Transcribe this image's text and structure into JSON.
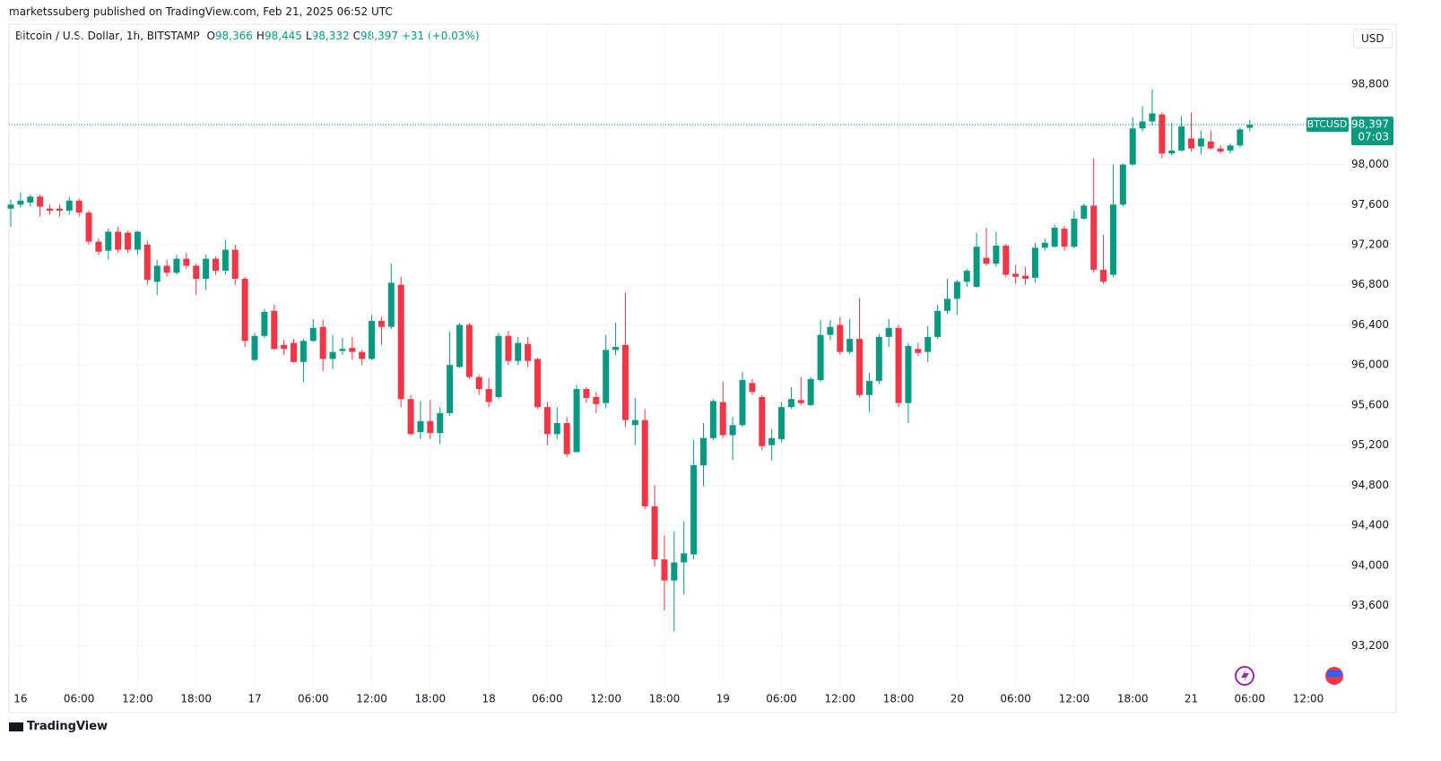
{
  "header": {
    "published": "marketssuberg published on TradingView.com, Feb 21, 2025 06:52 UTC",
    "symbol": "Bitcoin / U.S. Dollar, 1h, BITSTAMP",
    "ohlc": [
      {
        "key": "O",
        "text": "98,366"
      },
      {
        "key": "H",
        "text": "98,445"
      },
      {
        "key": "L",
        "text": "98,332"
      },
      {
        "key": "C",
        "text": "98,397"
      }
    ],
    "change": "+31 (+0.03%)",
    "currency": "USD"
  },
  "footer": {
    "brand": "TradingView"
  },
  "chart_data": {
    "type": "candlestick",
    "up_color": "#089981",
    "down_color": "#f23645",
    "grid": true,
    "categories": [
      null,
      "16",
      null,
      null,
      null,
      null,
      null,
      "06:00",
      null,
      null,
      null,
      null,
      null,
      "12:00",
      null,
      null,
      null,
      null,
      null,
      "18:00",
      null,
      null,
      null,
      null,
      null,
      "17",
      null,
      null,
      null,
      null,
      null,
      "06:00",
      null,
      null,
      null,
      null,
      null,
      "12:00",
      null,
      null,
      null,
      null,
      null,
      "18:00",
      null,
      null,
      null,
      null,
      null,
      "18",
      null,
      null,
      null,
      null,
      null,
      "06:00",
      null,
      null,
      null,
      null,
      null,
      "12:00",
      null,
      null,
      null,
      null,
      null,
      "18:00",
      null,
      null,
      null,
      null,
      null,
      "19",
      null,
      null,
      null,
      null,
      null,
      "06:00",
      null,
      null,
      null,
      null,
      null,
      "12:00",
      null,
      null,
      null,
      null,
      null,
      "18:00",
      null,
      null,
      null,
      null,
      null,
      "20",
      null,
      null,
      null,
      null,
      null,
      "06:00",
      null,
      null,
      null,
      null,
      null,
      "12:00",
      null,
      null,
      null,
      null,
      null,
      "18:00",
      null,
      null,
      null,
      null,
      null,
      "21",
      null,
      null,
      null,
      null,
      null,
      "06:00",
      null,
      null,
      null,
      null,
      null,
      "12:00"
    ],
    "open": [
      97560,
      97600,
      97620,
      97680,
      97560,
      97560,
      97540,
      97640,
      97520,
      97230,
      97140,
      97330,
      97320,
      97150,
      97200,
      96830,
      96990,
      96920,
      97060,
      96990,
      96860,
      97060,
      96940,
      97150,
      96860,
      96050,
      96290,
      96540,
      96200,
      96220,
      96030,
      96240,
      96380,
      96060,
      96140,
      96170,
      96130,
      96060,
      96440,
      96380,
      96800,
      95660,
      95330,
      95440,
      95320,
      95520,
      95980,
      96400,
      95880,
      95760,
      95680,
      96290,
      96040,
      96210,
      96060,
      95580,
      95310,
      95420,
      95130,
      95760,
      95680,
      95620,
      96150,
      96200,
      95400,
      95450,
      94590,
      94060,
      93850,
      94030,
      94110,
      95000,
      95270,
      95630,
      95300,
      95400,
      95820,
      95680,
      95200,
      95260,
      95580,
      95650,
      95600,
      95850,
      96300,
      96400,
      96130,
      96260,
      95700,
      95840,
      96280,
      96370,
      95620,
      96160,
      96130,
      96280,
      96540,
      96660,
      96830,
      96780,
      97070,
      97010,
      97190,
      96910,
      96890,
      96870,
      97170,
      97180,
      97360,
      97180,
      97460,
      97590,
      96950,
      96900,
      97600,
      98000,
      98360,
      98430,
      98500,
      98110,
      98140,
      98260,
      98180,
      98230,
      98160,
      98140,
      98190,
      98366,
      null,
      null,
      null,
      null,
      null,
      null
    ],
    "high": [
      97650,
      97720,
      97700,
      97700,
      97600,
      97600,
      97680,
      97660,
      97540,
      97260,
      97360,
      97380,
      97340,
      97340,
      97240,
      97050,
      97050,
      97100,
      97120,
      97010,
      97100,
      97080,
      97250,
      97200,
      96880,
      96320,
      96560,
      96600,
      96250,
      96260,
      96260,
      96460,
      96450,
      96300,
      96270,
      96280,
      96150,
      96500,
      96480,
      97010,
      96880,
      95700,
      95640,
      95650,
      95580,
      96330,
      96420,
      96420,
      95900,
      95870,
      96320,
      96340,
      96280,
      96280,
      96070,
      95630,
      95580,
      95480,
      95800,
      95780,
      95730,
      96300,
      96420,
      96720,
      95670,
      95560,
      94800,
      94300,
      94340,
      94440,
      95250,
      95420,
      95660,
      95830,
      95480,
      95930,
      95860,
      95700,
      95360,
      95630,
      95780,
      95880,
      95880,
      96450,
      96450,
      96480,
      96460,
      96670,
      95920,
      96310,
      96460,
      96400,
      96220,
      96220,
      96390,
      96600,
      96860,
      96850,
      96960,
      97320,
      97370,
      97330,
      97210,
      97000,
      96980,
      97220,
      97260,
      97400,
      97390,
      97540,
      97610,
      98060,
      97300,
      98000,
      98010,
      98470,
      98580,
      98750,
      98520,
      98420,
      98480,
      98520,
      98340,
      98340,
      98190,
      98210,
      98370,
      98445,
      null,
      null,
      null,
      null,
      null,
      null
    ],
    "low": [
      97380,
      97570,
      97580,
      97480,
      97500,
      97480,
      97500,
      97480,
      97200,
      97100,
      97050,
      97120,
      97120,
      97100,
      96800,
      96700,
      96880,
      96900,
      96960,
      96700,
      96750,
      96900,
      96900,
      96800,
      96180,
      96040,
      96270,
      96150,
      96100,
      96020,
      95830,
      96230,
      95940,
      95960,
      96100,
      96050,
      96000,
      96050,
      96200,
      96360,
      95580,
      95300,
      95260,
      95260,
      95210,
      95490,
      95970,
      95860,
      95700,
      95580,
      95660,
      96000,
      96000,
      95980,
      95560,
      95200,
      95260,
      95080,
      95130,
      95620,
      95520,
      95570,
      96100,
      95380,
      95200,
      94560,
      93990,
      93550,
      93340,
      93710,
      94060,
      94790,
      95250,
      95270,
      95050,
      95380,
      95700,
      95150,
      95050,
      95230,
      95560,
      95600,
      95590,
      95830,
      96250,
      96100,
      96110,
      95680,
      95530,
      95810,
      96180,
      95580,
      95420,
      96090,
      96030,
      96260,
      96510,
      96500,
      96780,
      96770,
      96990,
      96980,
      96880,
      96810,
      96800,
      96820,
      97140,
      97170,
      97140,
      97160,
      97450,
      96920,
      96810,
      96880,
      97580,
      97990,
      98330,
      98390,
      98060,
      98090,
      98130,
      98130,
      98100,
      98150,
      98110,
      98110,
      98170,
      98332,
      null,
      null,
      null,
      null,
      null,
      null
    ],
    "close": [
      97600,
      97640,
      97680,
      97580,
      97540,
      97540,
      97640,
      97520,
      97230,
      97130,
      97330,
      97150,
      97150,
      97330,
      96850,
      96990,
      96920,
      97060,
      96990,
      96860,
      97060,
      96940,
      97150,
      96860,
      96240,
      96290,
      96530,
      96160,
      96160,
      96030,
      96240,
      96370,
      96060,
      96130,
      96160,
      96130,
      96060,
      96440,
      96380,
      96820,
      95660,
      95310,
      95440,
      95320,
      95520,
      96000,
      96400,
      95880,
      95760,
      95630,
      96290,
      96040,
      96220,
      96040,
      95580,
      95310,
      95420,
      95110,
      95760,
      95670,
      95610,
      96150,
      96180,
      95450,
      95450,
      94590,
      94060,
      93850,
      94030,
      94120,
      95000,
      95270,
      95640,
      95300,
      95400,
      95850,
      95730,
      95190,
      95270,
      95580,
      95660,
      95620,
      95860,
      96300,
      96380,
      96130,
      96260,
      95700,
      95840,
      96280,
      96370,
      95620,
      96190,
      96120,
      96280,
      96540,
      96660,
      96830,
      96940,
      97180,
      97010,
      97190,
      96900,
      96880,
      96860,
      97170,
      97220,
      97370,
      97180,
      97460,
      97590,
      96950,
      96830,
      97600,
      98000,
      98360,
      98430,
      98510,
      98110,
      98140,
      98380,
      98160,
      98260,
      98160,
      98130,
      98190,
      98350,
      98397,
      null,
      null,
      null,
      null,
      null,
      null
    ],
    "ylim": [
      92800,
      99400
    ],
    "yticks": [
      {
        "value": 93200,
        "label": "93,200"
      },
      {
        "value": 93600,
        "label": "93,600"
      },
      {
        "value": 94000,
        "label": "94,000"
      },
      {
        "value": 94400,
        "label": "94,400"
      },
      {
        "value": 94800,
        "label": "94,800"
      },
      {
        "value": 95200,
        "label": "95,200"
      },
      {
        "value": 95600,
        "label": "95,600"
      },
      {
        "value": 96000,
        "label": "96,000"
      },
      {
        "value": 96400,
        "label": "96,400"
      },
      {
        "value": 96800,
        "label": "96,800"
      },
      {
        "value": 97200,
        "label": "97,200"
      },
      {
        "value": 97600,
        "label": "97,600"
      },
      {
        "value": 98000,
        "label": "98,000"
      },
      {
        "value": 98400,
        "label": "98,400"
      },
      {
        "value": 98800,
        "label": "98,800"
      }
    ],
    "price_line": {
      "name": "BTCUSD",
      "value": 98397,
      "label": "98,397",
      "countdown": "07:03"
    }
  }
}
